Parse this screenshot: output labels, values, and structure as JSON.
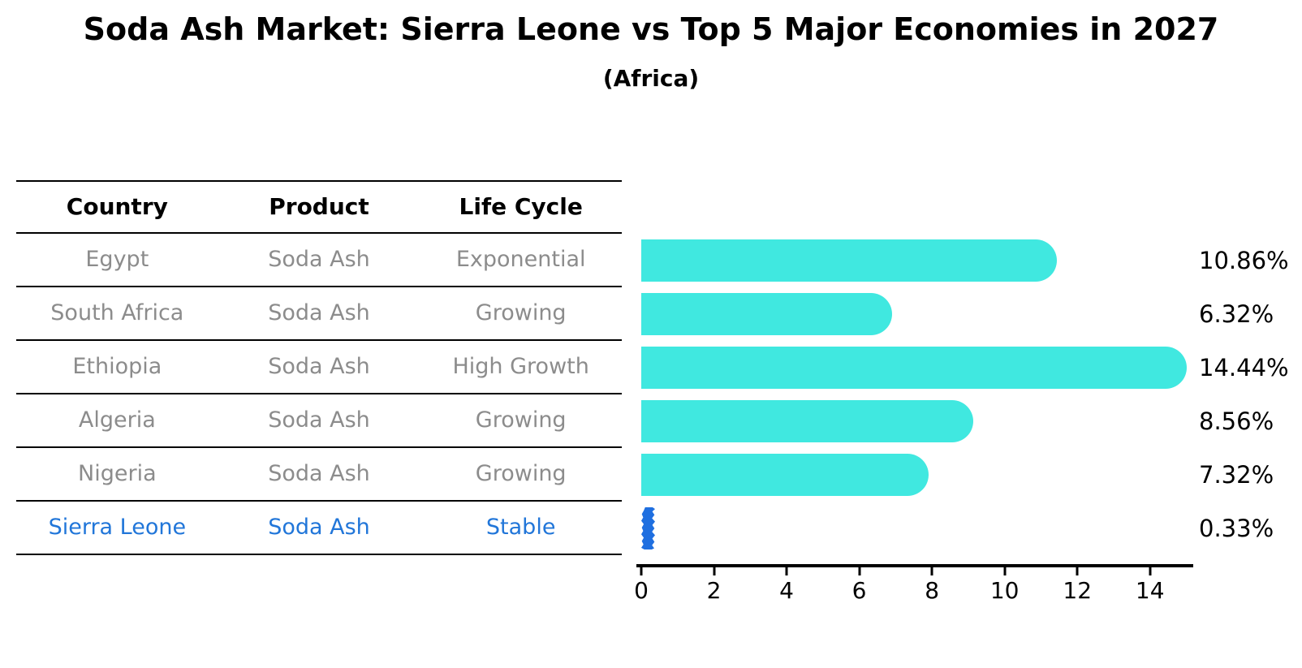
{
  "title": "Soda Ash Market: Sierra Leone vs Top 5 Major Economies in 2027",
  "subtitle": "(Africa)",
  "table": {
    "headers": [
      "Country",
      "Product",
      "Life Cycle"
    ],
    "rows": [
      {
        "country": "Egypt",
        "product": "Soda Ash",
        "life_cycle": "Exponential",
        "highlight": false
      },
      {
        "country": "South Africa",
        "product": "Soda Ash",
        "life_cycle": "Growing",
        "highlight": false
      },
      {
        "country": "Ethiopia",
        "product": "Soda Ash",
        "life_cycle": "High Growth",
        "highlight": false
      },
      {
        "country": "Algeria",
        "product": "Soda Ash",
        "life_cycle": "Growing",
        "highlight": false
      },
      {
        "country": "Nigeria",
        "product": "Soda Ash",
        "life_cycle": "Growing",
        "highlight": false
      },
      {
        "country": "Sierra Leone",
        "product": "Soda Ash",
        "life_cycle": "Stable",
        "highlight": true
      }
    ]
  },
  "chart_data": {
    "type": "bar",
    "orientation": "horizontal",
    "title": "Soda Ash Market: Sierra Leone vs Top 5 Major Economies in 2027 (Africa)",
    "categories": [
      "Egypt",
      "South Africa",
      "Ethiopia",
      "Algeria",
      "Nigeria",
      "Sierra Leone"
    ],
    "values": [
      10.86,
      6.32,
      14.44,
      8.56,
      7.32,
      0.33
    ],
    "value_labels": [
      "10.86%",
      "6.32%",
      "14.44%",
      "8.56%",
      "7.32%",
      "0.33%"
    ],
    "x_ticks": [
      "0",
      "2",
      "4",
      "6",
      "8",
      "10",
      "12",
      "14"
    ],
    "xlim": [
      0,
      15.1
    ],
    "grid": false,
    "legend": false,
    "highlight_index": 5,
    "bar_color": "#40e8e0",
    "highlight_bar_color": "#1f6fe0"
  },
  "colors": {
    "background": "#ffffff",
    "title_text": "#000000",
    "table_header_text": "#000000",
    "table_body_text": "#8c8c8c",
    "highlight_text": "#2176d9",
    "axis": "#000000"
  }
}
